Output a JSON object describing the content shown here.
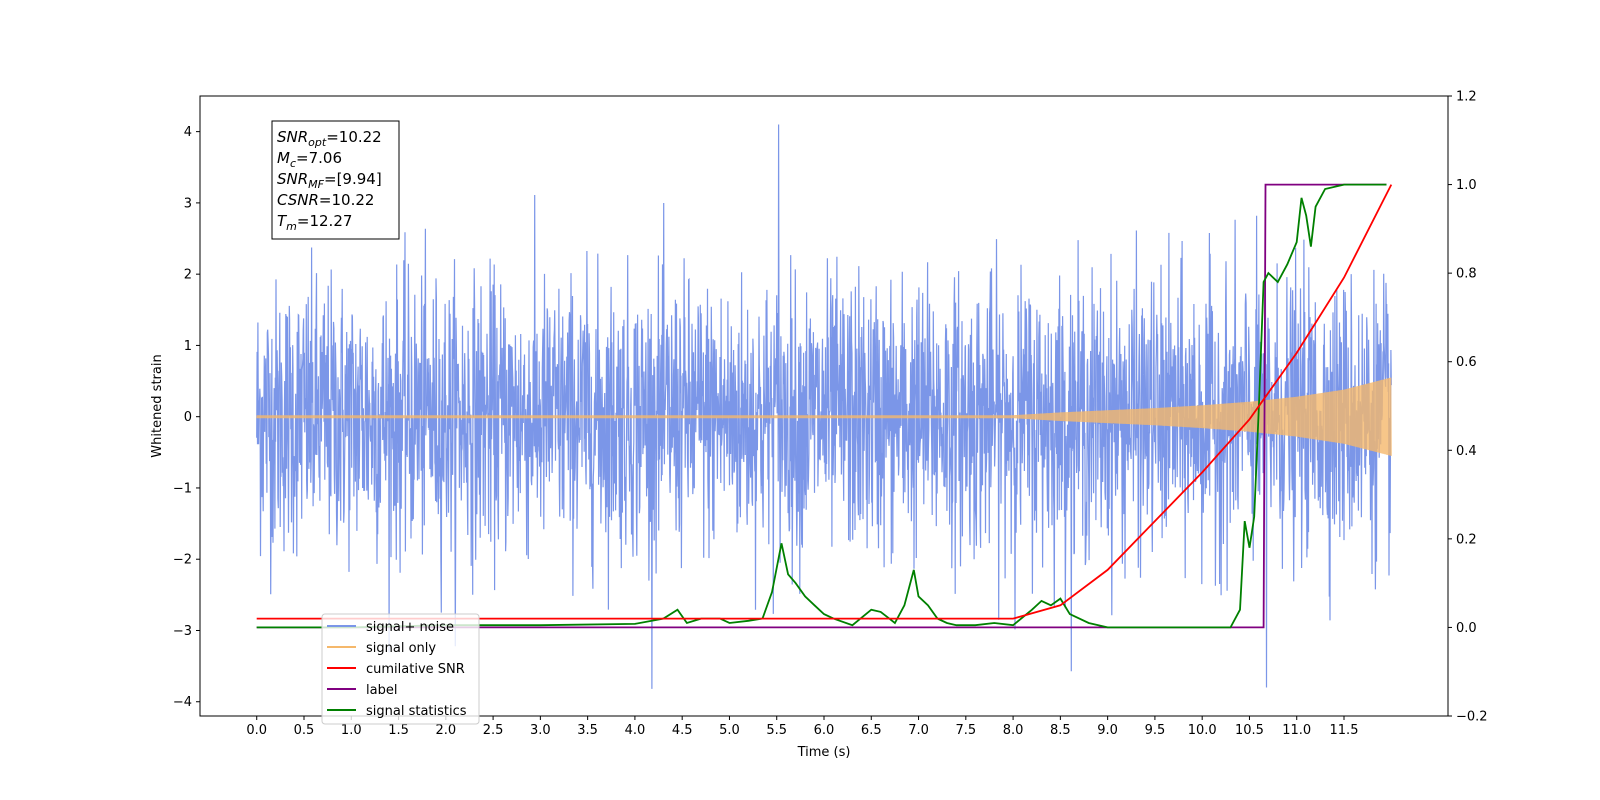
{
  "chart_data": {
    "type": "line",
    "xlabel": "Time (s)",
    "ylabel": "Whitened strain",
    "xlim": [
      -0.6,
      12.6
    ],
    "ylim_left": [
      -4.2,
      4.5
    ],
    "ylim_right": [
      -0.2,
      1.2
    ],
    "x_ticks": [
      "0.0",
      "0.5",
      "1.0",
      "1.5",
      "2.0",
      "2.5",
      "3.0",
      "3.5",
      "4.0",
      "4.5",
      "5.0",
      "5.5",
      "6.0",
      "6.5",
      "7.0",
      "7.5",
      "8.0",
      "8.5",
      "9.0",
      "9.5",
      "10.0",
      "10.5",
      "11.0",
      "11.5"
    ],
    "y_ticks_left": [
      "4",
      "3",
      "2",
      "1",
      "0",
      "−1",
      "−2",
      "−3",
      "−4"
    ],
    "y_ticks_right": [
      "1.2",
      "1.0",
      "0.8",
      "0.6",
      "0.4",
      "0.2",
      "0.0",
      "−0.2"
    ],
    "annotation_lines": [
      {
        "sym": "SNR",
        "sub": "opt",
        "val": "=10.22"
      },
      {
        "sym": "M",
        "sub": "c",
        "val": "=7.06"
      },
      {
        "sym": "SNR",
        "sub": "MF",
        "val": "=[9.94]"
      },
      {
        "sym": "CSNR",
        "sub": "",
        "val": "=10.22"
      },
      {
        "sym": "T",
        "sub": "m",
        "val": "=12.27"
      }
    ],
    "legend_placement": "lower-left",
    "series": [
      {
        "name": "signal+ noise",
        "color": "#7b96e8",
        "axis": "left",
        "description_stats": {
          "x_range": [
            0,
            12
          ],
          "std_approx": 1.0,
          "peak": 4.1,
          "peak_x": 5.52,
          "min": -3.8,
          "min_x": 10.68
        }
      },
      {
        "name": "signal only",
        "color": "#f5b86b",
        "axis": "left",
        "envelope": {
          "x": [
            0,
            8,
            8.5,
            9,
            9.5,
            10,
            10.5,
            11,
            11.5,
            12
          ],
          "amp": [
            0.02,
            0.02,
            0.06,
            0.09,
            0.12,
            0.16,
            0.21,
            0.28,
            0.38,
            0.55
          ]
        }
      },
      {
        "name": "cumilative SNR",
        "color": "#ff0000",
        "axis": "right",
        "x": [
          0,
          8.0,
          8.5,
          9.0,
          9.5,
          10.0,
          10.5,
          11.0,
          11.5,
          12.0
        ],
        "y": [
          0.02,
          0.02,
          0.05,
          0.13,
          0.24,
          0.35,
          0.47,
          0.62,
          0.79,
          1.0
        ]
      },
      {
        "name": "label",
        "color": "#800080",
        "axis": "right",
        "x": [
          0,
          10.65,
          10.67,
          11.95
        ],
        "y": [
          0,
          0,
          1.0,
          1.0
        ]
      },
      {
        "name": "signal statistics",
        "color": "#008000",
        "axis": "right",
        "x": [
          0,
          1.0,
          2.0,
          3.0,
          4.0,
          4.3,
          4.45,
          4.55,
          4.7,
          4.9,
          5.0,
          5.2,
          5.35,
          5.45,
          5.55,
          5.62,
          5.7,
          5.8,
          5.9,
          6.0,
          6.1,
          6.3,
          6.5,
          6.6,
          6.75,
          6.85,
          6.95,
          7.0,
          7.1,
          7.2,
          7.3,
          7.4,
          7.6,
          7.8,
          8.0,
          8.2,
          8.3,
          8.4,
          8.5,
          8.6,
          8.8,
          9.0,
          9.5,
          10.0,
          10.3,
          10.4,
          10.45,
          10.5,
          10.55,
          10.6,
          10.65,
          10.7,
          10.8,
          10.9,
          11.0,
          11.05,
          11.1,
          11.15,
          11.2,
          11.3,
          11.5,
          11.7,
          11.95
        ],
        "y": [
          0.0,
          0.0,
          0.005,
          0.005,
          0.008,
          0.02,
          0.04,
          0.01,
          0.02,
          0.02,
          0.01,
          0.015,
          0.02,
          0.08,
          0.19,
          0.12,
          0.1,
          0.07,
          0.05,
          0.03,
          0.02,
          0.005,
          0.04,
          0.035,
          0.01,
          0.05,
          0.13,
          0.07,
          0.05,
          0.02,
          0.01,
          0.005,
          0.005,
          0.01,
          0.005,
          0.04,
          0.06,
          0.05,
          0.065,
          0.03,
          0.01,
          0.0,
          0.0,
          0.0,
          0.0,
          0.04,
          0.24,
          0.18,
          0.25,
          0.5,
          0.78,
          0.8,
          0.78,
          0.82,
          0.87,
          0.97,
          0.93,
          0.86,
          0.95,
          0.99,
          1.0,
          1.0,
          1.0
        ]
      }
    ]
  }
}
